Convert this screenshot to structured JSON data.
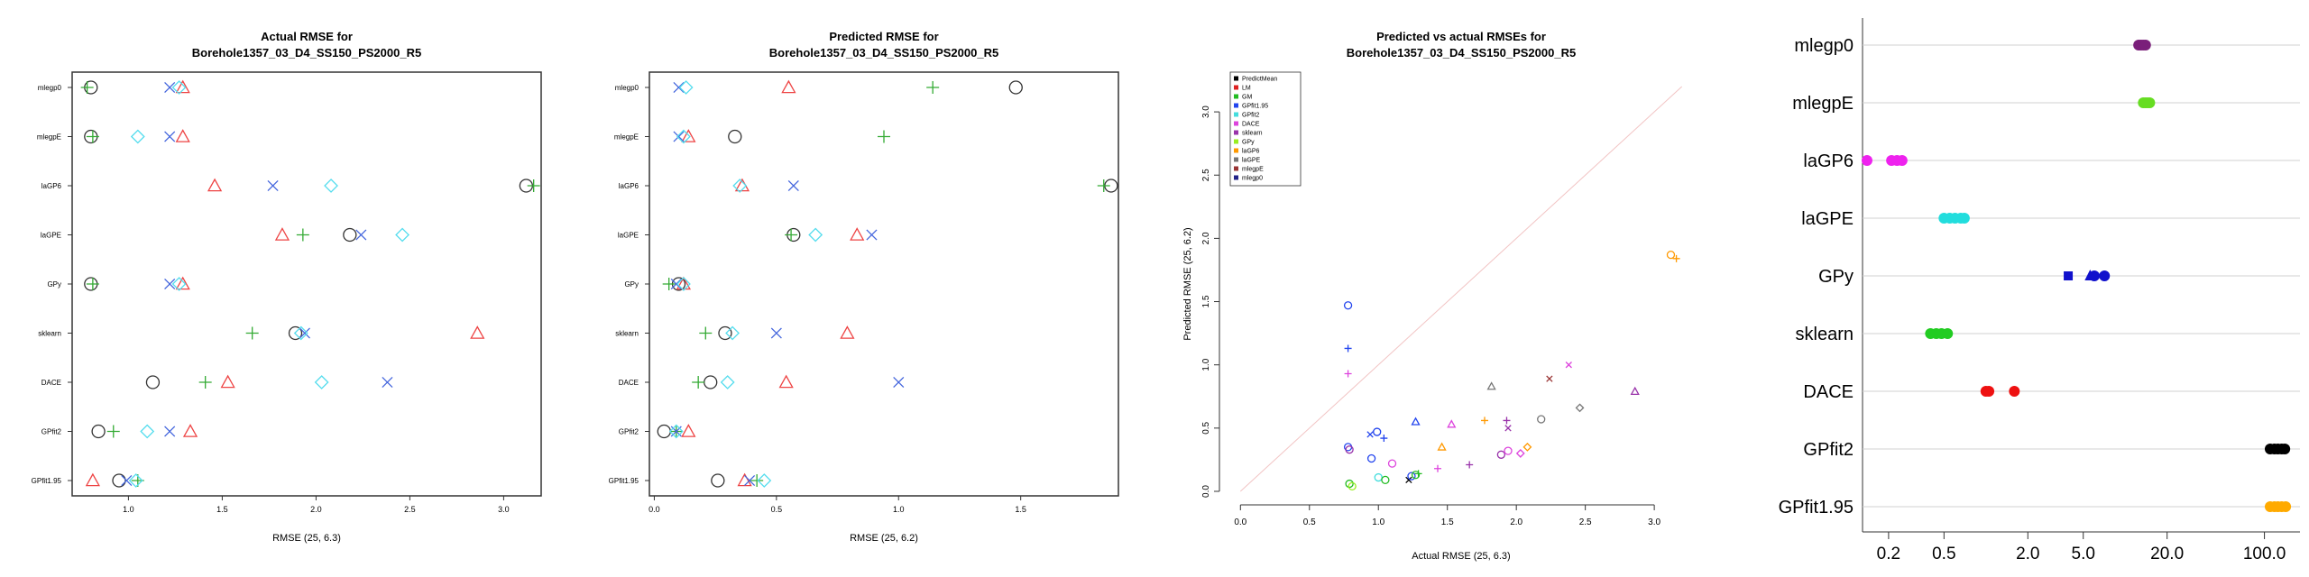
{
  "chart_data": [
    {
      "type": "scatter",
      "title": "Actual RMSE for\nBorehole1357_03_D4_SS150_PS2000_R5",
      "xlabel": "RMSE (25, 6.3)",
      "xlim": [
        0.7,
        3.2
      ],
      "xticks": [
        1.0,
        1.5,
        2.0,
        2.5,
        3.0
      ],
      "xtick_labels": [
        "1.0",
        "1.5",
        "2.0",
        "2.5",
        "3.0"
      ],
      "categories": [
        "mlegp0",
        "mlegpE",
        "laGP6",
        "laGPE",
        "GPy",
        "sklearn",
        "DACE",
        "GPfit2",
        "GPfit1.95"
      ],
      "series": [
        {
          "marker": "circle",
          "color": "#333333",
          "values": [
            0.8,
            0.8,
            3.12,
            2.18,
            0.8,
            1.89,
            1.13,
            0.84,
            0.95
          ]
        },
        {
          "marker": "triangle",
          "color": "#ee4444",
          "values": [
            1.29,
            1.29,
            1.46,
            1.82,
            1.29,
            2.86,
            1.53,
            1.33,
            0.81
          ]
        },
        {
          "marker": "plus",
          "color": "#33aa33",
          "values": [
            0.78,
            0.81,
            3.16,
            1.93,
            0.81,
            1.66,
            1.41,
            0.92,
            1.05
          ]
        },
        {
          "marker": "cross",
          "color": "#4466dd",
          "values": [
            1.22,
            1.22,
            1.77,
            2.24,
            1.22,
            1.94,
            2.38,
            1.22,
            0.99
          ]
        },
        {
          "marker": "diamond",
          "color": "#55ddee",
          "values": [
            1.27,
            1.05,
            2.08,
            2.46,
            1.27,
            1.92,
            2.03,
            1.1,
            1.04
          ]
        }
      ]
    },
    {
      "type": "scatter",
      "title": "Predicted RMSE for\nBorehole1357_03_D4_SS150_PS2000_R5",
      "xlabel": "RMSE (25, 6.2)",
      "xlim": [
        -0.02,
        1.9
      ],
      "xticks": [
        0.0,
        0.5,
        1.0,
        1.5
      ],
      "xtick_labels": [
        "0.0",
        "0.5",
        "1.0",
        "1.5"
      ],
      "categories": [
        "mlegp0",
        "mlegpE",
        "laGP6",
        "laGPE",
        "GPy",
        "sklearn",
        "DACE",
        "GPfit2",
        "GPfit1.95"
      ],
      "series": [
        {
          "marker": "circle",
          "color": "#333333",
          "values": [
            1.48,
            0.33,
            1.87,
            0.57,
            0.1,
            0.29,
            0.23,
            0.04,
            0.26
          ]
        },
        {
          "marker": "triangle",
          "color": "#ee4444",
          "values": [
            0.55,
            0.14,
            0.36,
            0.83,
            0.12,
            0.79,
            0.54,
            0.14,
            0.37
          ]
        },
        {
          "marker": "plus",
          "color": "#33aa33",
          "values": [
            1.14,
            0.94,
            1.84,
            0.56,
            0.06,
            0.21,
            0.18,
            0.09,
            0.42
          ]
        },
        {
          "marker": "cross",
          "color": "#4466dd",
          "values": [
            0.1,
            0.1,
            0.57,
            0.89,
            0.09,
            0.5,
            1.0,
            0.09,
            0.39
          ]
        },
        {
          "marker": "diamond",
          "color": "#55ddee",
          "values": [
            0.13,
            0.12,
            0.35,
            0.66,
            0.12,
            0.32,
            0.3,
            0.09,
            0.45
          ]
        }
      ]
    },
    {
      "type": "scatter",
      "title": "Predicted vs actual RMSEs for\nBorehole1357_03_D4_SS150_PS2000_R5",
      "xlabel": "Actual RMSE (25, 6.3)",
      "ylabel": "Predicted RMSE (25, 6.2)",
      "xlim": [
        -0.1,
        3.3
      ],
      "ylim": [
        -0.05,
        3.3
      ],
      "xticks": [
        0.0,
        0.5,
        1.0,
        1.5,
        2.0,
        2.5,
        3.0
      ],
      "xtick_labels": [
        "0.0",
        "0.5",
        "1.0",
        "1.5",
        "2.0",
        "2.5",
        "3.0"
      ],
      "yticks": [
        0.0,
        0.5,
        1.0,
        1.5,
        2.0,
        2.5,
        3.0
      ],
      "ytick_labels": [
        "0.0",
        "0.5",
        "1.0",
        "1.5",
        "2.0",
        "2.5",
        "3.0"
      ],
      "diagonal": true,
      "legend_position": "top-left",
      "legend": [
        {
          "label": "PredictMean",
          "color": "#000000"
        },
        {
          "label": "LM",
          "color": "#dd2222"
        },
        {
          "label": "GM",
          "color": "#22bb22"
        },
        {
          "label": "GPfit1.95",
          "color": "#2244ee"
        },
        {
          "label": "GPfit2",
          "color": "#44dddd"
        },
        {
          "label": "DACE",
          "color": "#dd44dd"
        },
        {
          "label": "sklearn",
          "color": "#9933aa"
        },
        {
          "label": "GPy",
          "color": "#99ee22"
        },
        {
          "label": "laGP6",
          "color": "#ff9900"
        },
        {
          "label": "laGPE",
          "color": "#777777"
        },
        {
          "label": "mlegpE",
          "color": "#993333"
        },
        {
          "label": "mlegp0",
          "color": "#222288"
        }
      ],
      "points": [
        {
          "x": 0.78,
          "y": 1.47,
          "m": "circle",
          "c": "#2244ee"
        },
        {
          "x": 0.78,
          "y": 1.13,
          "m": "plus",
          "c": "#2244ee"
        },
        {
          "x": 0.78,
          "y": 0.93,
          "m": "plus",
          "c": "#dd44dd"
        },
        {
          "x": 0.78,
          "y": 0.35,
          "m": "circle",
          "c": "#2244ee"
        },
        {
          "x": 0.79,
          "y": 0.33,
          "m": "circle",
          "c": "#9933aa"
        },
        {
          "x": 0.79,
          "y": 0.06,
          "m": "circle",
          "c": "#22bb22"
        },
        {
          "x": 0.81,
          "y": 0.04,
          "m": "circle",
          "c": "#99ee22"
        },
        {
          "x": 0.95,
          "y": 0.26,
          "m": "circle",
          "c": "#2244ee"
        },
        {
          "x": 0.94,
          "y": 0.45,
          "m": "cross",
          "c": "#2244ee"
        },
        {
          "x": 0.99,
          "y": 0.47,
          "m": "circle",
          "c": "#2244ee"
        },
        {
          "x": 1.04,
          "y": 0.42,
          "m": "plus",
          "c": "#2244ee"
        },
        {
          "x": 1.0,
          "y": 0.11,
          "m": "circle",
          "c": "#44dddd"
        },
        {
          "x": 1.05,
          "y": 0.09,
          "m": "circle",
          "c": "#22bb22"
        },
        {
          "x": 1.1,
          "y": 0.22,
          "m": "circle",
          "c": "#dd44dd"
        },
        {
          "x": 1.22,
          "y": 0.09,
          "m": "cross",
          "c": "#000000"
        },
        {
          "x": 1.24,
          "y": 0.12,
          "m": "circle",
          "c": "#2244ee"
        },
        {
          "x": 1.27,
          "y": 0.13,
          "m": "circle",
          "c": "#22bb22"
        },
        {
          "x": 1.29,
          "y": 0.14,
          "m": "plus",
          "c": "#22bb22"
        },
        {
          "x": 1.27,
          "y": 0.55,
          "m": "triangle",
          "c": "#2244ee"
        },
        {
          "x": 1.43,
          "y": 0.18,
          "m": "plus",
          "c": "#dd44dd"
        },
        {
          "x": 1.46,
          "y": 0.35,
          "m": "triangle",
          "c": "#ff9900"
        },
        {
          "x": 1.53,
          "y": 0.53,
          "m": "triangle",
          "c": "#dd44dd"
        },
        {
          "x": 1.66,
          "y": 0.21,
          "m": "plus",
          "c": "#9933aa"
        },
        {
          "x": 1.77,
          "y": 0.56,
          "m": "plus",
          "c": "#ff9900"
        },
        {
          "x": 1.82,
          "y": 0.83,
          "m": "triangle",
          "c": "#777777"
        },
        {
          "x": 1.89,
          "y": 0.29,
          "m": "circle",
          "c": "#9933aa"
        },
        {
          "x": 1.93,
          "y": 0.56,
          "m": "plus",
          "c": "#9933aa"
        },
        {
          "x": 1.94,
          "y": 0.5,
          "m": "cross",
          "c": "#9933aa"
        },
        {
          "x": 1.94,
          "y": 0.32,
          "m": "circle",
          "c": "#dd44dd"
        },
        {
          "x": 2.03,
          "y": 0.3,
          "m": "diamond",
          "c": "#dd44dd"
        },
        {
          "x": 2.08,
          "y": 0.35,
          "m": "diamond",
          "c": "#ff9900"
        },
        {
          "x": 2.18,
          "y": 0.57,
          "m": "circle",
          "c": "#777777"
        },
        {
          "x": 2.24,
          "y": 0.89,
          "m": "cross",
          "c": "#993333"
        },
        {
          "x": 2.38,
          "y": 1.0,
          "m": "cross",
          "c": "#dd44dd"
        },
        {
          "x": 2.46,
          "y": 0.66,
          "m": "diamond",
          "c": "#777777"
        },
        {
          "x": 2.86,
          "y": 0.79,
          "m": "triangle",
          "c": "#9933aa"
        },
        {
          "x": 3.12,
          "y": 1.87,
          "m": "circle",
          "c": "#ff9900"
        },
        {
          "x": 3.16,
          "y": 1.84,
          "m": "plus",
          "c": "#ff9900"
        }
      ]
    },
    {
      "type": "scatter",
      "scale": "log",
      "xlim": [
        0.13,
        180
      ],
      "xticks": [
        0.2,
        0.5,
        2.0,
        5.0,
        20.0,
        100.0
      ],
      "xtick_labels": [
        "0.2",
        "0.5",
        "2.0",
        "5.0",
        "20.0",
        "100.0"
      ],
      "categories": [
        "mlegp0",
        "mlegpE",
        "laGP6",
        "laGPE",
        "GPy",
        "sklearn",
        "DACE",
        "GPfit2",
        "GPfit1.95"
      ],
      "rows": [
        {
          "label": "mlegp0",
          "color": "#7a1f7a",
          "values": [
            12.5,
            13.0,
            13.5,
            14.0
          ]
        },
        {
          "label": "mlegpE",
          "color": "#66dd22",
          "values": [
            13.5,
            14.0,
            14.5,
            15.0
          ]
        },
        {
          "label": "laGP6",
          "color": "#ee22ee",
          "values": [
            0.14,
            0.21,
            0.23,
            0.25
          ]
        },
        {
          "label": "laGPE",
          "color": "#22dddd",
          "values": [
            0.5,
            0.55,
            0.6,
            0.66,
            0.7
          ]
        },
        {
          "label": "GPy",
          "color": "#1111cc",
          "values": [
            3.9,
            5.6,
            6.0,
            7.1
          ]
        },
        {
          "label": "sklearn",
          "color": "#22cc22",
          "values": [
            0.4,
            0.44,
            0.48,
            0.53
          ]
        },
        {
          "label": "DACE",
          "color": "#ee1111",
          "values": [
            1.0,
            1.05,
            1.6
          ]
        },
        {
          "label": "GPfit2",
          "color": "#000000",
          "values": [
            110,
            118,
            125,
            133,
            140
          ]
        },
        {
          "label": "GPfit1.95",
          "color": "#ffaa00",
          "values": [
            110,
            118,
            125,
            133,
            142
          ]
        }
      ]
    }
  ]
}
